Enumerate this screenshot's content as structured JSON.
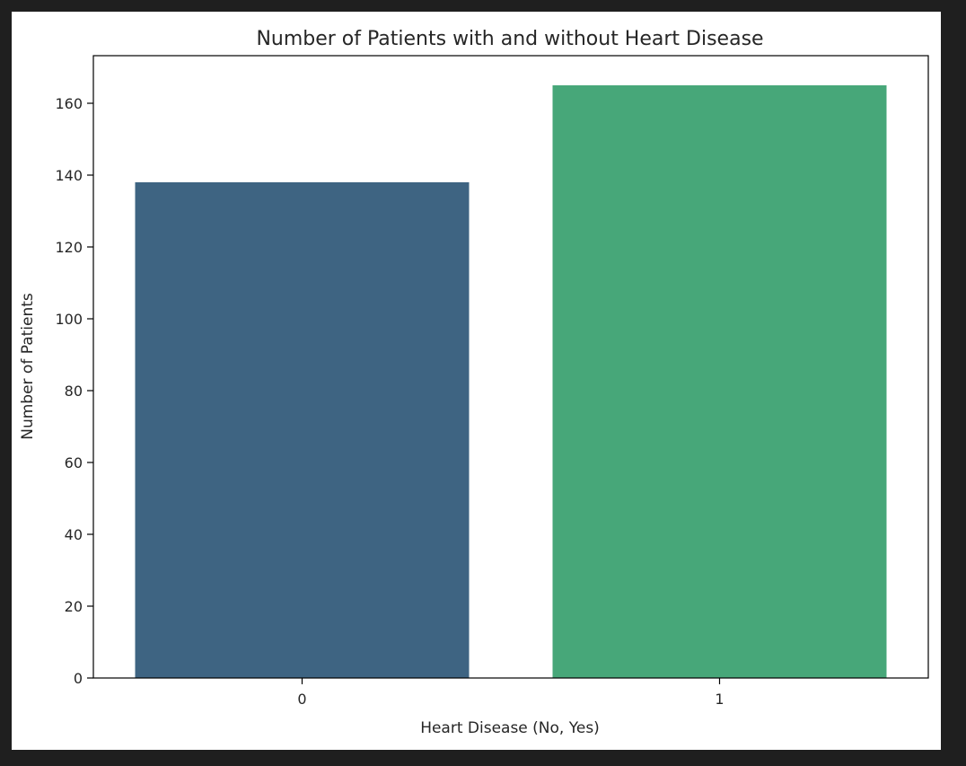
{
  "chart_data": {
    "type": "bar",
    "title": "Number of Patients with and without Heart Disease",
    "xlabel": "Heart Disease (No, Yes)",
    "ylabel": "Number of Patients",
    "categories": [
      "0",
      "1"
    ],
    "values": [
      138,
      165
    ],
    "bar_colors": [
      "#3e6482",
      "#47a779"
    ],
    "ylim": [
      0,
      173.25
    ],
    "yticks": [
      0,
      20,
      40,
      60,
      80,
      100,
      120,
      140,
      160
    ],
    "grid": false,
    "legend": false
  }
}
